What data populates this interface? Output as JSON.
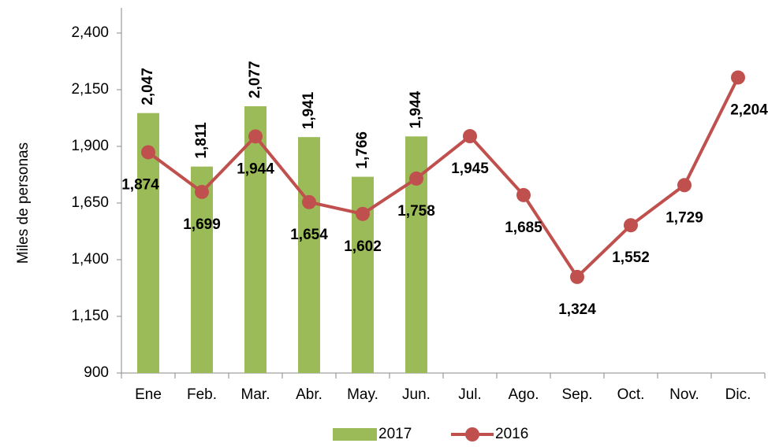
{
  "chart_data": {
    "type": "bar",
    "y_label": "Miles de personas",
    "categories": [
      "Ene",
      "Feb.",
      "Mar.",
      "Abr.",
      "May.",
      "Jun.",
      "Jul.",
      "Ago.",
      "Sep.",
      "Oct.",
      "Nov.",
      "Dic."
    ],
    "series": [
      {
        "name": "2017",
        "type": "bar",
        "color": "#9bbb59",
        "values": [
          2047,
          1811,
          2077,
          1941,
          1766,
          1944,
          null,
          null,
          null,
          null,
          null,
          null
        ],
        "value_labels": [
          "2,047",
          "1,811",
          "2,077",
          "1,941",
          "1,766",
          "1,944",
          null,
          null,
          null,
          null,
          null,
          null
        ]
      },
      {
        "name": "2016",
        "type": "line",
        "color": "#c0504d",
        "values": [
          1874,
          1699,
          1944,
          1654,
          1602,
          1758,
          1945,
          1685,
          1324,
          1552,
          1729,
          2204
        ],
        "value_labels": [
          "1,874",
          "1,699",
          "1,944",
          "1,654",
          "1,602",
          "1,758",
          "1,945",
          "1,685",
          "1,324",
          "1,552",
          "1,729",
          "2,204"
        ]
      }
    ],
    "ylim": [
      900,
      2400
    ],
    "yticks": [
      900,
      {
        "value": 1150,
        "label": "1,150"
      },
      {
        "value": 1400,
        "label": "1,400"
      },
      {
        "value": 1650,
        "label": "1,650"
      },
      {
        "value": 1900,
        "label": "1,900"
      },
      {
        "value": 2150,
        "label": "2,150"
      },
      {
        "value": 2400,
        "label": "2,400"
      }
    ],
    "grid": false,
    "legend": "bottom"
  }
}
